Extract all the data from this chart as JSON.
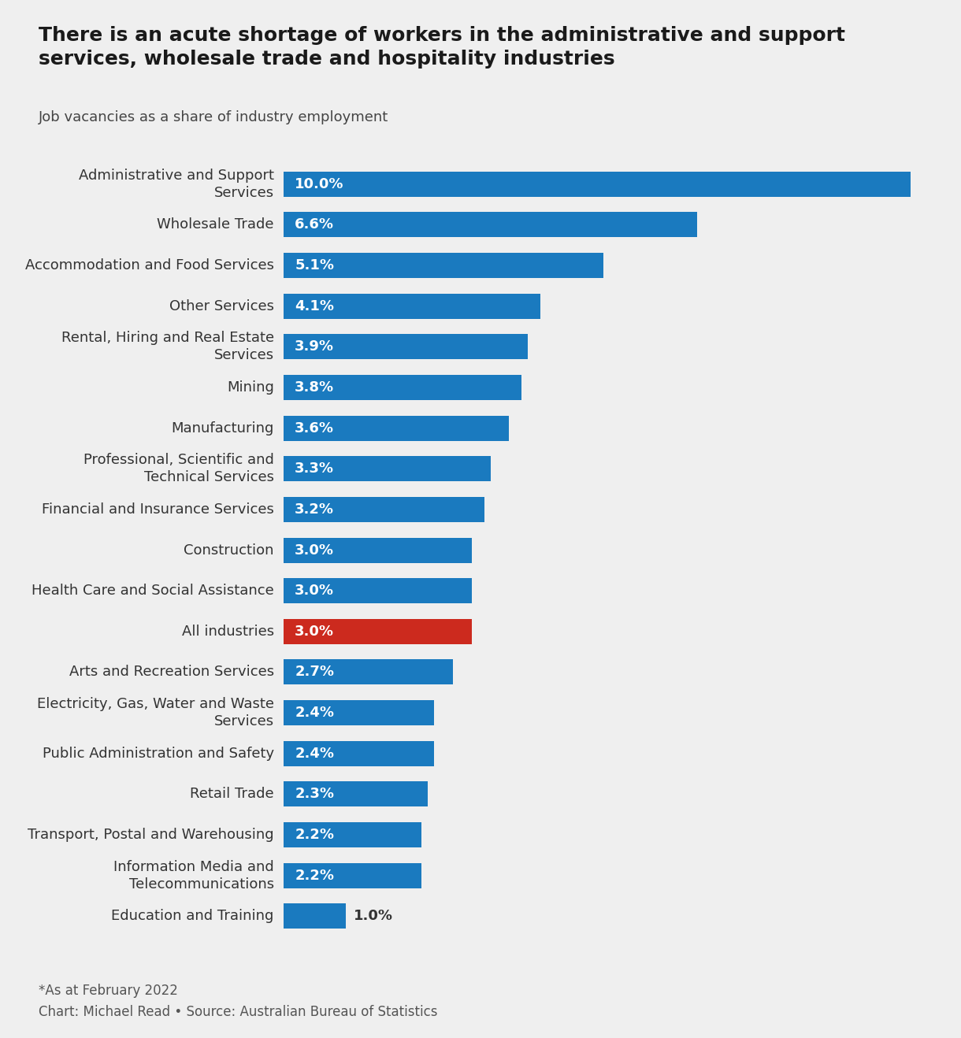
{
  "title": "There is an acute shortage of workers in the administrative and support\nservices, wholesale trade and hospitality industries",
  "subtitle": "Job vacancies as a share of industry employment",
  "footnote": "*As at February 2022",
  "source": "Chart: Michael Read • Source: Australian Bureau of Statistics",
  "background_color": "#efefef",
  "bar_color": "#1a7abf",
  "highlight_color": "#cc2a1e",
  "label_color_inside": "#ffffff",
  "label_color_outside": "#333333",
  "categories": [
    "Administrative and Support\nServices",
    "Wholesale Trade",
    "Accommodation and Food Services",
    "Other Services",
    "Rental, Hiring and Real Estate\nServices",
    "Mining",
    "Manufacturing",
    "Professional, Scientific and\nTechnical Services",
    "Financial and Insurance Services",
    "Construction",
    "Health Care and Social Assistance",
    "All industries",
    "Arts and Recreation Services",
    "Electricity, Gas, Water and Waste\nServices",
    "Public Administration and Safety",
    "Retail Trade",
    "Transport, Postal and Warehousing",
    "Information Media and\nTelecommunications",
    "Education and Training"
  ],
  "values": [
    10.0,
    6.6,
    5.1,
    4.1,
    3.9,
    3.8,
    3.6,
    3.3,
    3.2,
    3.0,
    3.0,
    3.0,
    2.7,
    2.4,
    2.4,
    2.3,
    2.2,
    2.2,
    1.0
  ],
  "highlight_index": 11,
  "xlim": [
    0,
    10.5
  ],
  "title_fontsize": 18,
  "subtitle_fontsize": 13,
  "category_fontsize": 13,
  "value_fontsize": 13,
  "footnote_fontsize": 12
}
